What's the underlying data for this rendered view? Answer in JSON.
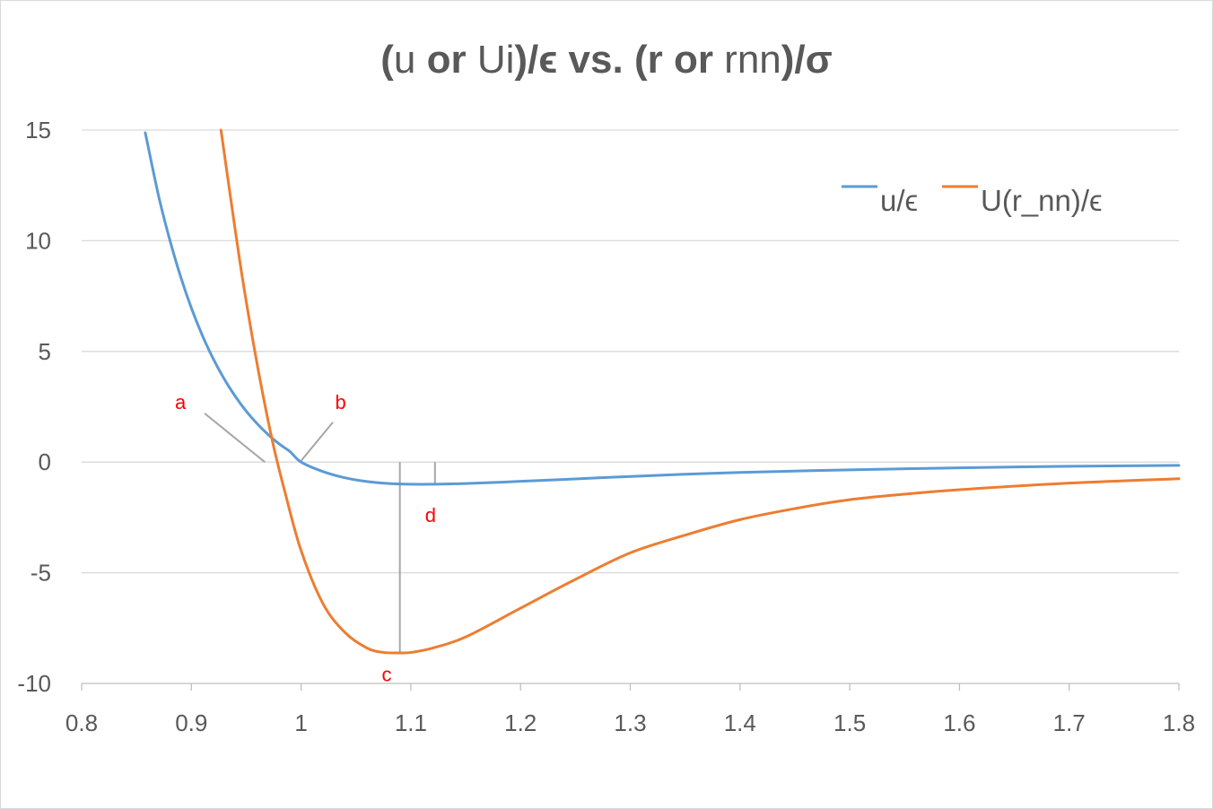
{
  "chart_data": {
    "type": "line",
    "title_parts": [
      {
        "text": "(",
        "bold": true
      },
      {
        "text": "u ",
        "bold": false
      },
      {
        "text": "or ",
        "bold": true
      },
      {
        "text": "Ui",
        "bold": false
      },
      {
        "text": ")/ϵ vs. (r or ",
        "bold": true
      },
      {
        "text": "rnn",
        "bold": false
      },
      {
        "text": ")/σ",
        "bold": true
      }
    ],
    "xlabel": "",
    "ylabel": "",
    "xlim": [
      0.8,
      1.8
    ],
    "ylim": [
      -10,
      15
    ],
    "x_ticks": [
      "0.8",
      "0.9",
      "1",
      "1.1",
      "1.2",
      "1.3",
      "1.4",
      "1.5",
      "1.6",
      "1.7",
      "1.8"
    ],
    "y_ticks": [
      "15",
      "10",
      "5",
      "0",
      "-5",
      "-10"
    ],
    "grid": "horizontal",
    "legend_position": "top-right",
    "series": [
      {
        "name": "u/ϵ",
        "color": "#5b9bd5",
        "x": [
          0.858,
          0.87,
          0.88,
          0.89,
          0.9,
          0.91,
          0.92,
          0.93,
          0.94,
          0.95,
          0.96,
          0.97,
          0.98,
          0.99,
          1.0,
          1.02,
          1.04,
          1.06,
          1.08,
          1.1,
          1.12,
          1.15,
          1.2,
          1.25,
          1.3,
          1.35,
          1.4,
          1.5,
          1.6,
          1.7,
          1.8
        ],
        "y": [
          14.88,
          12.05,
          10.1,
          8.41,
          6.96,
          5.72,
          4.66,
          3.75,
          2.97,
          2.3,
          1.73,
          1.24,
          0.82,
          0.47,
          0.0,
          -0.43,
          -0.71,
          -0.88,
          -0.97,
          -1.0,
          -1.0,
          -0.97,
          -0.87,
          -0.76,
          -0.65,
          -0.55,
          -0.47,
          -0.35,
          -0.26,
          -0.19,
          -0.15
        ]
      },
      {
        "name": "U(r_nn)/ϵ",
        "color": "#ed7d31",
        "x": [
          0.927,
          0.935,
          0.945,
          0.955,
          0.965,
          0.975,
          0.985,
          1.0,
          1.02,
          1.04,
          1.06,
          1.075,
          1.09,
          1.1,
          1.12,
          1.15,
          1.2,
          1.25,
          1.3,
          1.35,
          1.4,
          1.45,
          1.5,
          1.55,
          1.6,
          1.7,
          1.8
        ],
        "y": [
          15.0,
          12.2,
          8.8,
          5.8,
          3.1,
          0.7,
          -1.3,
          -4.0,
          -6.4,
          -7.7,
          -8.4,
          -8.6,
          -8.62,
          -8.6,
          -8.4,
          -7.9,
          -6.6,
          -5.3,
          -4.1,
          -3.3,
          -2.6,
          -2.1,
          -1.7,
          -1.45,
          -1.25,
          -0.95,
          -0.75
        ]
      }
    ],
    "annotations": [
      {
        "label": "a",
        "text_at": [
          0.89,
          2.4
        ],
        "line_from": [
          0.912,
          2.2
        ],
        "line_to": [
          0.967,
          0.0
        ]
      },
      {
        "label": "b",
        "text_at": [
          1.036,
          2.4
        ],
        "line_from": [
          1.029,
          1.8
        ],
        "line_to": [
          0.999,
          0.0
        ]
      },
      {
        "label": "c",
        "text_at": [
          1.078,
          -9.9
        ],
        "line_from": [
          1.09,
          0.0
        ],
        "line_to": [
          1.09,
          -8.62
        ]
      },
      {
        "label": "d",
        "text_at": [
          1.118,
          -2.7
        ],
        "line_from": [
          1.122,
          0.0
        ],
        "line_to": [
          1.122,
          -1.0
        ]
      }
    ],
    "annotation_color": "#ff0000",
    "guide_line_color": "#a6a6a6"
  }
}
